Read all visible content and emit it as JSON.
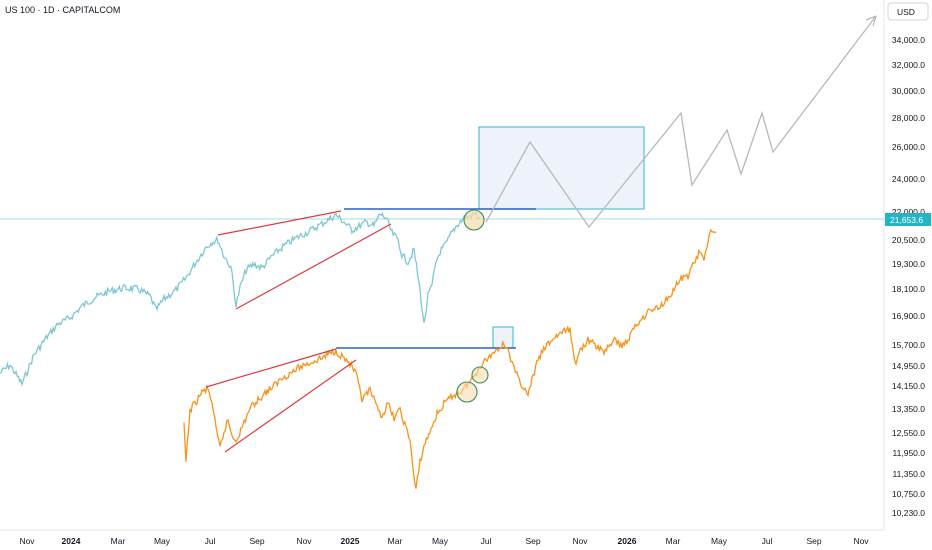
{
  "header": {
    "symbol_title": "US 100 · 1D · CAPITALCOM"
  },
  "currency_button": {
    "label": "USD"
  },
  "colors": {
    "upper_series": "#7fc7cf",
    "lower_series": "#f7931a",
    "trend_line": "#e03a3e",
    "resistance_line": "#2b62c3",
    "box_border": "#4fc3d6",
    "box_fill": "#eef2fb",
    "projection": "#b8b8b8",
    "price_badge": "#22b5c7",
    "circle_fill": "#f6dcb0",
    "circle_stroke": "#3a8f5c"
  },
  "chart_data": {
    "type": "line",
    "x_ticks": [
      {
        "label": "Nov",
        "bold": false
      },
      {
        "label": "2024",
        "bold": true
      },
      {
        "label": "Mar",
        "bold": false
      },
      {
        "label": "May",
        "bold": false
      },
      {
        "label": "Jul",
        "bold": false
      },
      {
        "label": "Sep",
        "bold": false
      },
      {
        "label": "Nov",
        "bold": false
      },
      {
        "label": "2025",
        "bold": true
      },
      {
        "label": "Mar",
        "bold": false
      },
      {
        "label": "May",
        "bold": false
      },
      {
        "label": "Jul",
        "bold": false
      },
      {
        "label": "Sep",
        "bold": false
      },
      {
        "label": "Nov",
        "bold": false
      },
      {
        "label": "2026",
        "bold": true
      },
      {
        "label": "Mar",
        "bold": false
      },
      {
        "label": "May",
        "bold": false
      },
      {
        "label": "Jul",
        "bold": false
      },
      {
        "label": "Sep",
        "bold": false
      },
      {
        "label": "Nov",
        "bold": false
      }
    ],
    "y_ticks": [
      "34,000.0",
      "32,000.0",
      "30,000.0",
      "28,000.0",
      "26,000.0",
      "24,000.0",
      "22,000.0",
      "20,500.0",
      "19,300.0",
      "18,100.0",
      "16,900.0",
      "15,700.0",
      "14,950.0",
      "14,150.0",
      "13,350.0",
      "12,550.0",
      "11,950.0",
      "11,350.0",
      "10,750.0",
      "10,230.0"
    ],
    "last_price_label": "21,653.6",
    "series": [
      {
        "points": [
          [
            0,
            373
          ],
          [
            10,
            365
          ],
          [
            22,
            384
          ],
          [
            34,
            355
          ],
          [
            46,
            338
          ],
          [
            58,
            324
          ],
          [
            70,
            318
          ],
          [
            82,
            306
          ],
          [
            96,
            297
          ],
          [
            110,
            291
          ],
          [
            124,
            288
          ],
          [
            138,
            289
          ],
          [
            150,
            296
          ],
          [
            156,
            310
          ],
          [
            164,
            299
          ],
          [
            176,
            290
          ],
          [
            186,
            278
          ],
          [
            196,
            262
          ],
          [
            206,
            247
          ],
          [
            212,
            242
          ],
          [
            218,
            240
          ],
          [
            224,
            256
          ],
          [
            228,
            262
          ],
          [
            232,
            273
          ],
          [
            236,
            306
          ],
          [
            240,
            288
          ],
          [
            246,
            270
          ],
          [
            254,
            264
          ],
          [
            262,
            268
          ],
          [
            272,
            256
          ],
          [
            284,
            246
          ],
          [
            296,
            238
          ],
          [
            308,
            232
          ],
          [
            318,
            226
          ],
          [
            328,
            220
          ],
          [
            336,
            215
          ],
          [
            344,
            222
          ],
          [
            352,
            230
          ],
          [
            358,
            227
          ],
          [
            366,
            222
          ],
          [
            374,
            226
          ],
          [
            380,
            214
          ],
          [
            386,
            218
          ],
          [
            392,
            233
          ],
          [
            398,
            240
          ],
          [
            402,
            255
          ],
          [
            408,
            262
          ],
          [
            414,
            250
          ],
          [
            420,
            290
          ],
          [
            424,
            325
          ],
          [
            428,
            296
          ],
          [
            432,
            286
          ],
          [
            436,
            262
          ],
          [
            440,
            252
          ],
          [
            446,
            244
          ],
          [
            452,
            232
          ],
          [
            458,
            224
          ],
          [
            464,
            218
          ],
          [
            470,
            216
          ],
          [
            476,
            214
          ],
          [
            480,
            218
          ]
        ]
      },
      {
        "points": [
          [
            184,
            426
          ],
          [
            186,
            462
          ],
          [
            190,
            410
          ],
          [
            196,
            402
          ],
          [
            202,
            392
          ],
          [
            208,
            389
          ],
          [
            212,
            402
          ],
          [
            216,
            430
          ],
          [
            220,
            448
          ],
          [
            224,
            432
          ],
          [
            228,
            420
          ],
          [
            232,
            436
          ],
          [
            236,
            440
          ],
          [
            242,
            428
          ],
          [
            250,
            408
          ],
          [
            258,
            400
          ],
          [
            266,
            392
          ],
          [
            274,
            386
          ],
          [
            282,
            378
          ],
          [
            292,
            372
          ],
          [
            302,
            366
          ],
          [
            312,
            362
          ],
          [
            322,
            358
          ],
          [
            330,
            353
          ],
          [
            336,
            351
          ],
          [
            344,
            358
          ],
          [
            350,
            364
          ],
          [
            356,
            374
          ],
          [
            362,
            400
          ],
          [
            370,
            390
          ],
          [
            376,
            406
          ],
          [
            382,
            416
          ],
          [
            388,
            404
          ],
          [
            394,
            418
          ],
          [
            400,
            410
          ],
          [
            406,
            428
          ],
          [
            410,
            440
          ],
          [
            414,
            478
          ],
          [
            416,
            490
          ],
          [
            420,
            462
          ],
          [
            424,
            446
          ],
          [
            430,
            432
          ],
          [
            436,
            416
          ],
          [
            444,
            404
          ],
          [
            452,
            396
          ],
          [
            460,
            392
          ],
          [
            468,
            384
          ],
          [
            474,
            376
          ],
          [
            480,
            366
          ],
          [
            486,
            360
          ],
          [
            492,
            354
          ],
          [
            498,
            348
          ],
          [
            504,
            344
          ],
          [
            508,
            348
          ],
          [
            512,
            364
          ],
          [
            518,
            378
          ],
          [
            524,
            388
          ],
          [
            528,
            396
          ],
          [
            532,
            380
          ],
          [
            538,
            360
          ],
          [
            546,
            346
          ],
          [
            554,
            338
          ],
          [
            562,
            332
          ],
          [
            570,
            330
          ],
          [
            576,
            366
          ],
          [
            580,
            350
          ],
          [
            588,
            340
          ],
          [
            596,
            346
          ],
          [
            604,
            352
          ],
          [
            610,
            344
          ],
          [
            616,
            340
          ],
          [
            622,
            346
          ],
          [
            628,
            340
          ],
          [
            634,
            328
          ],
          [
            642,
            318
          ],
          [
            650,
            310
          ],
          [
            658,
            308
          ],
          [
            666,
            300
          ],
          [
            672,
            292
          ],
          [
            680,
            280
          ],
          [
            688,
            276
          ],
          [
            694,
            262
          ],
          [
            700,
            252
          ],
          [
            704,
            262
          ],
          [
            708,
            240
          ],
          [
            712,
            230
          ],
          [
            716,
            232
          ]
        ]
      }
    ]
  }
}
